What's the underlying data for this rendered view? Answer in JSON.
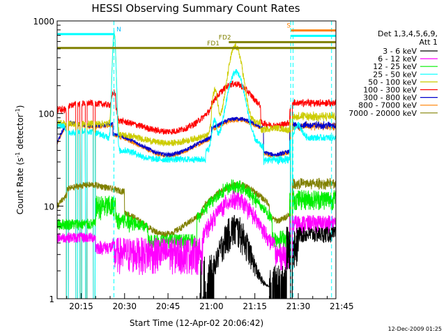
{
  "chart_data": {
    "type": "line",
    "title": "HESSI Observing Summary Count Rates",
    "xlabel": "Start Time (12-Apr-02 20:06:42)",
    "ylabel_main": "Count Rate (s",
    "ylabel_sup1": "-1",
    "ylabel_mid": " detector",
    "ylabel_sup2": "-1",
    "ylabel_end": ")",
    "x_range_min": [
      6.7,
      103
    ],
    "y_range": [
      1,
      1000
    ],
    "y_scale": "log",
    "x_ticks": [
      {
        "t": 15,
        "label": "20:15"
      },
      {
        "t": 30,
        "label": "20:30"
      },
      {
        "t": 45,
        "label": "20:45"
      },
      {
        "t": 60,
        "label": "21:00"
      },
      {
        "t": 75,
        "label": "21:15"
      },
      {
        "t": 90,
        "label": "21:30"
      },
      {
        "t": 105,
        "label": "21:45"
      }
    ],
    "y_ticks": [
      {
        "v": 1,
        "label": "1"
      },
      {
        "v": 10,
        "label": "10"
      },
      {
        "v": 100,
        "label": "100"
      },
      {
        "v": 1000,
        "label": "1000"
      }
    ],
    "legend_header": [
      "Det 1,3,4,5,6,9,",
      "Att 1"
    ],
    "footer": "12-Dec-2009 01:25",
    "series": [
      {
        "name": "3 - 6 keV",
        "color": "#000000",
        "key": "s3"
      },
      {
        "name": "6 - 12 keV",
        "color": "#ff00ff",
        "key": "s6"
      },
      {
        "name": "12 - 25 keV",
        "color": "#00ee00",
        "key": "s12"
      },
      {
        "name": "25 - 50 keV",
        "color": "#00ffff",
        "key": "s25"
      },
      {
        "name": "50 - 100 keV",
        "color": "#cccc00",
        "key": "s50"
      },
      {
        "name": "100 - 300 keV",
        "color": "#ff0000",
        "key": "s100"
      },
      {
        "name": "300 - 800 keV",
        "color": "#0000cc",
        "key": "s300"
      },
      {
        "name": "800 - 7000 keV",
        "color": "#ff8000",
        "key": "s800"
      },
      {
        "name": "7000 - 20000 keV",
        "color": "#808000",
        "key": "s7000"
      }
    ],
    "flag_bars": [
      {
        "label": "N",
        "color": "#00ffff",
        "t0": 6.7,
        "t1": 26.5,
        "y": 720,
        "label_at": 27.2,
        "label_color": "#00bbff"
      },
      {
        "label": "S",
        "color": "#ff8000",
        "t0": 87.5,
        "t1": 103,
        "y": 790,
        "label_at": 86.0,
        "label_color": "#ff8000"
      },
      {
        "label": "",
        "color": "#00ffff",
        "t0": 87.5,
        "t1": 103,
        "y": 690,
        "label_at": 0,
        "label_color": "#00ffff"
      },
      {
        "label": "FD1",
        "color": "#808000",
        "t0": 6.7,
        "t1": 103,
        "y": 510,
        "label_at": 58.5,
        "label_color": "#808000"
      },
      {
        "label": "FD2",
        "color": "#808000",
        "t0": 66,
        "t1": 103,
        "y": 590,
        "label_at": 62.5,
        "label_color": "#808000"
      }
    ],
    "vlines": [
      {
        "t": 26.3,
        "color": "#00ffff"
      },
      {
        "t": 87.4,
        "color": "#00ffff"
      },
      {
        "t": 88.2,
        "color": "#00ffff"
      },
      {
        "t": 101.5,
        "color": "#00ffff"
      }
    ]
  }
}
